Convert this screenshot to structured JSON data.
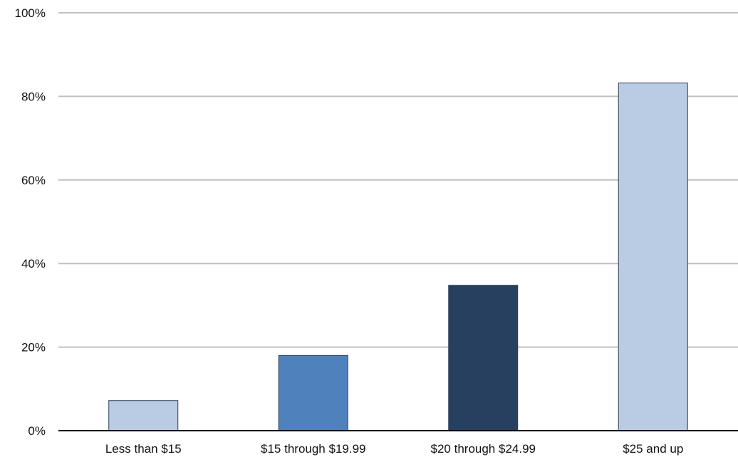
{
  "chart_data": {
    "type": "bar",
    "categories": [
      "Less than $15",
      "$15 through $19.99",
      "$20 through $24.99",
      "$25 and up"
    ],
    "values": [
      7.2,
      18.0,
      34.8,
      83.2
    ],
    "bar_colors": [
      "#b9cce4",
      "#4f81bd",
      "#27405f",
      "#b9cce4"
    ],
    "ylim": [
      0,
      100
    ],
    "yticks": [
      0,
      20,
      40,
      60,
      80,
      100
    ],
    "ytick_labels": [
      "0%",
      "20%",
      "40%",
      "60%",
      "80%",
      "100%"
    ],
    "grid": true,
    "gridline_color": "#c0c0c0",
    "title": "",
    "xlabel": "",
    "ylabel": ""
  }
}
